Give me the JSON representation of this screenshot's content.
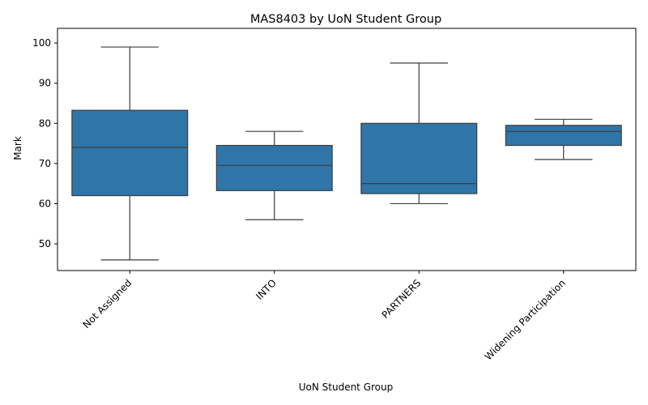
{
  "chart_data": {
    "type": "box",
    "title": "MAS8403 by UoN Student Group",
    "xlabel": "UoN Student Group",
    "ylabel": "Mark",
    "ylim": [
      43.35,
      103.65
    ],
    "yticks": [
      50,
      60,
      70,
      80,
      90,
      100
    ],
    "grid": false,
    "legend": "none",
    "box_color": "#2f75a8",
    "line_color": "#3d3d3d",
    "categories": [
      "Not Assigned",
      "INTO",
      "PARTNERS",
      "Widening Participation"
    ],
    "boxes": [
      {
        "category": "Not Assigned",
        "whisker_low": 46,
        "q1": 62,
        "median": 74,
        "q3": 83.25,
        "whisker_high": 99
      },
      {
        "category": "INTO",
        "whisker_low": 56,
        "q1": 63.25,
        "median": 69.5,
        "q3": 74.5,
        "whisker_high": 78
      },
      {
        "category": "PARTNERS",
        "whisker_low": 60,
        "q1": 62.5,
        "median": 65,
        "q3": 80,
        "whisker_high": 95
      },
      {
        "category": "Widening Participation",
        "whisker_low": 71,
        "q1": 74.5,
        "median": 78,
        "q3": 79.5,
        "whisker_high": 81
      }
    ]
  }
}
